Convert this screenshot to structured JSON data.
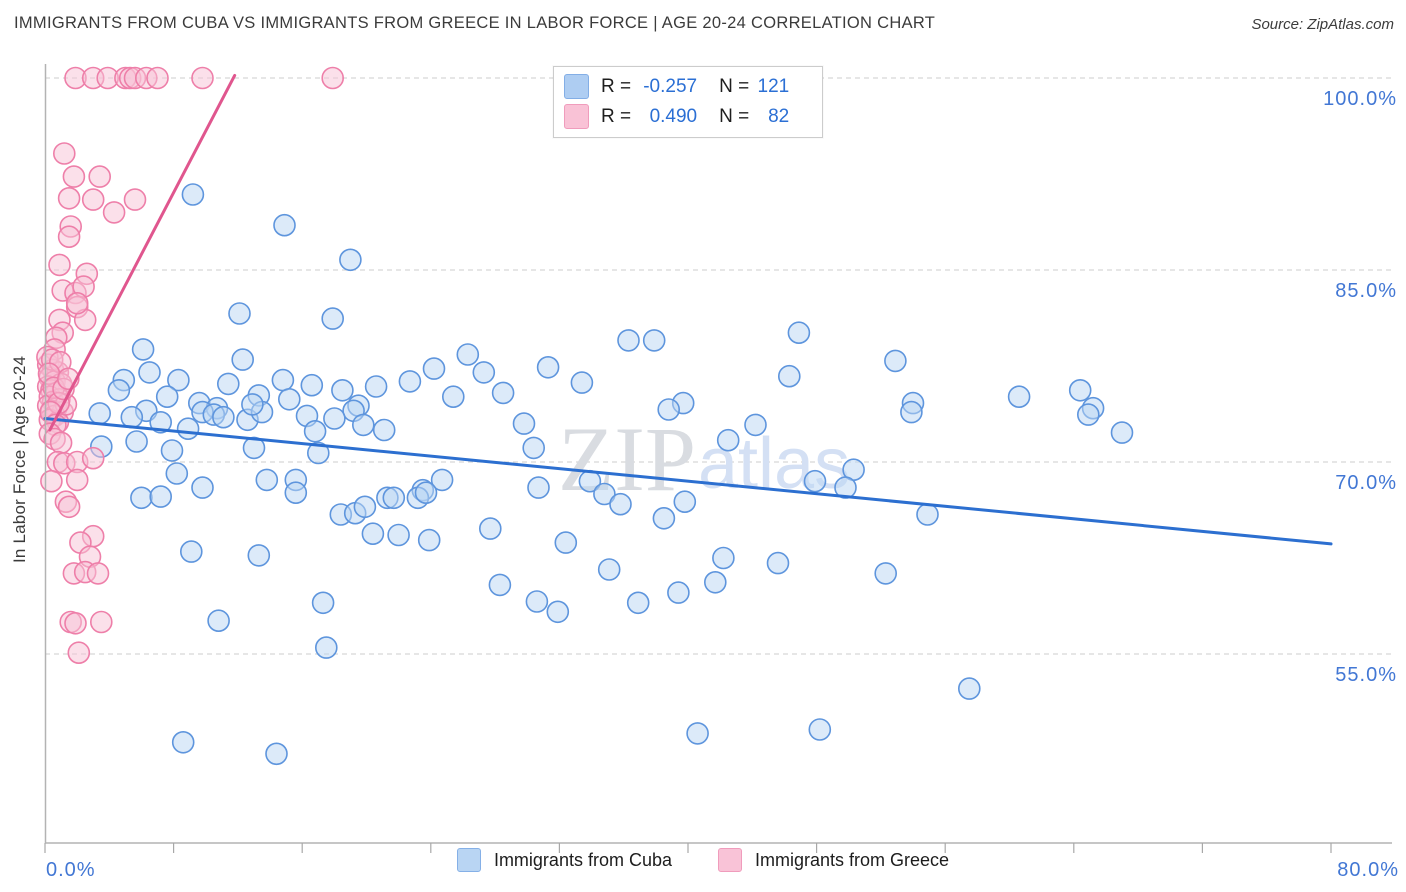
{
  "header": {
    "title": "IMMIGRANTS FROM CUBA VS IMMIGRANTS FROM GREECE IN LABOR FORCE | AGE 20-24 CORRELATION CHART",
    "source": "Source: ZipAtlas.com"
  },
  "legend_box": {
    "rows": [
      {
        "series": "cuba",
        "r_label": "R =",
        "r_value": "-0.257",
        "n_label": "N =",
        "n_value": "121"
      },
      {
        "series": "greece",
        "r_label": "R =",
        "r_value": "0.490",
        "n_label": "N =",
        "n_value": "82"
      }
    ]
  },
  "bottom_legend": [
    {
      "label": "Immigrants from Cuba"
    },
    {
      "label": "Immigrants from Greece"
    }
  ],
  "watermark": {
    "zip": "ZIP",
    "atlas": "atlas"
  },
  "colors": {
    "cuba_fill": "#b9d5f3",
    "cuba_stroke": "#5e95dd",
    "cuba_trend": "#2c6fd0",
    "greece_fill": "#f8c2d6",
    "greece_stroke": "#ee7fa9",
    "greece_trend": "#e0568e",
    "axis_label": "#4277d4",
    "grid": "#d6d6d6",
    "spine": "#b3b3b3",
    "tick": "#a8a8a8",
    "watermark_zip": "#d9dce1",
    "watermark_atlas": "#d4e0f4"
  },
  "chart_data": {
    "type": "scatter",
    "title": "IMMIGRANTS FROM CUBA VS IMMIGRANTS FROM GREECE IN LABOR FORCE | AGE 20-24 CORRELATION CHART",
    "xlabel": "",
    "ylabel": "In Labor Force | Age 20-24",
    "xlim": [
      0,
      80
    ],
    "ylim": [
      40,
      102
    ],
    "x_tick_labels": [
      "0.0%",
      "80.0%"
    ],
    "x_tick_count": 11,
    "y_gridlines": [
      100,
      85,
      70,
      55
    ],
    "y_tick_labels": [
      "100.0%",
      "85.0%",
      "70.0%",
      "55.0%"
    ],
    "grid": "dashed-horizontal",
    "legend_position": "top-center-box and bottom-center",
    "series": [
      {
        "name": "Immigrants from Cuba",
        "R": -0.257,
        "N": 121,
        "trend": {
          "x1": 0,
          "y1": 73.4,
          "x2": 80,
          "y2": 63.6
        },
        "points": [
          [
            9.2,
            90.9
          ],
          [
            14.9,
            88.5
          ],
          [
            19.0,
            85.8
          ],
          [
            12.1,
            81.6
          ],
          [
            17.9,
            81.2
          ],
          [
            6.1,
            78.8
          ],
          [
            4.9,
            76.4
          ],
          [
            6.5,
            77.0
          ],
          [
            8.3,
            76.4
          ],
          [
            12.3,
            78.0
          ],
          [
            14.8,
            76.4
          ],
          [
            18.5,
            75.6
          ],
          [
            19.5,
            74.4
          ],
          [
            13.3,
            75.2
          ],
          [
            9.6,
            74.6
          ],
          [
            10.7,
            74.2
          ],
          [
            3.4,
            73.8
          ],
          [
            6.3,
            74.0
          ],
          [
            7.2,
            73.1
          ],
          [
            9.8,
            73.9
          ],
          [
            10.5,
            73.7
          ],
          [
            11.1,
            73.5
          ],
          [
            12.6,
            73.3
          ],
          [
            13.5,
            73.9
          ],
          [
            19.2,
            74.0
          ],
          [
            16.3,
            73.6
          ],
          [
            16.8,
            72.4
          ],
          [
            21.1,
            72.5
          ],
          [
            4.6,
            75.6
          ],
          [
            7.6,
            75.1
          ],
          [
            11.4,
            76.1
          ],
          [
            15.2,
            74.9
          ],
          [
            18.0,
            73.4
          ],
          [
            20.6,
            75.9
          ],
          [
            5.4,
            73.5
          ],
          [
            8.9,
            72.6
          ],
          [
            12.9,
            74.5
          ],
          [
            16.6,
            76.0
          ],
          [
            19.8,
            72.9
          ],
          [
            3.5,
            71.2
          ],
          [
            5.7,
            71.6
          ],
          [
            7.9,
            70.9
          ],
          [
            8.2,
            69.1
          ],
          [
            6.0,
            67.2
          ],
          [
            7.2,
            67.3
          ],
          [
            9.8,
            68.0
          ],
          [
            13.8,
            68.6
          ],
          [
            15.6,
            68.6
          ],
          [
            15.6,
            67.6
          ],
          [
            13.0,
            71.1
          ],
          [
            17.0,
            70.7
          ],
          [
            18.4,
            65.9
          ],
          [
            19.3,
            66.0
          ],
          [
            19.9,
            66.5
          ],
          [
            20.4,
            64.4
          ],
          [
            21.3,
            67.2
          ],
          [
            9.1,
            63.0
          ],
          [
            13.3,
            62.7
          ],
          [
            10.8,
            57.6
          ],
          [
            17.3,
            59.0
          ],
          [
            17.5,
            55.5
          ],
          [
            8.6,
            48.1
          ],
          [
            14.4,
            47.2
          ],
          [
            22.7,
            76.3
          ],
          [
            24.2,
            77.3
          ],
          [
            26.3,
            78.4
          ],
          [
            27.3,
            77.0
          ],
          [
            28.5,
            75.4
          ],
          [
            25.4,
            75.1
          ],
          [
            31.3,
            77.4
          ],
          [
            33.4,
            76.2
          ],
          [
            36.3,
            79.5
          ],
          [
            37.9,
            79.5
          ],
          [
            39.7,
            74.6
          ],
          [
            29.8,
            73.0
          ],
          [
            30.4,
            71.1
          ],
          [
            24.7,
            68.6
          ],
          [
            23.5,
            67.8
          ],
          [
            23.2,
            67.2
          ],
          [
            21.7,
            67.2
          ],
          [
            23.7,
            67.6
          ],
          [
            30.7,
            68.0
          ],
          [
            33.9,
            68.5
          ],
          [
            34.8,
            67.5
          ],
          [
            35.8,
            66.7
          ],
          [
            38.5,
            65.6
          ],
          [
            39.8,
            66.9
          ],
          [
            22.0,
            64.3
          ],
          [
            23.9,
            63.9
          ],
          [
            27.7,
            64.8
          ],
          [
            32.4,
            63.7
          ],
          [
            35.1,
            61.6
          ],
          [
            28.3,
            60.4
          ],
          [
            30.6,
            59.1
          ],
          [
            31.9,
            58.3
          ],
          [
            36.9,
            59.0
          ],
          [
            39.4,
            59.8
          ],
          [
            41.7,
            60.6
          ],
          [
            42.2,
            62.5
          ],
          [
            40.6,
            48.8
          ],
          [
            42.5,
            71.7
          ],
          [
            38.8,
            74.1
          ],
          [
            46.9,
            80.1
          ],
          [
            46.3,
            76.7
          ],
          [
            52.9,
            77.9
          ],
          [
            54.0,
            74.6
          ],
          [
            60.6,
            75.1
          ],
          [
            64.4,
            75.6
          ],
          [
            65.2,
            74.2
          ],
          [
            44.2,
            72.9
          ],
          [
            53.9,
            73.9
          ],
          [
            64.9,
            73.7
          ],
          [
            50.3,
            69.4
          ],
          [
            47.9,
            68.5
          ],
          [
            49.8,
            68.0
          ],
          [
            54.9,
            65.9
          ],
          [
            45.6,
            62.1
          ],
          [
            52.3,
            61.3
          ],
          [
            57.5,
            52.3
          ],
          [
            48.2,
            49.1
          ],
          [
            67.0,
            72.3
          ]
        ]
      },
      {
        "name": "Immigrants from Greece",
        "R": 0.49,
        "N": 82,
        "trend": {
          "x1": 0.3,
          "y1": 72.5,
          "x2": 11.8,
          "y2": 100.2
        },
        "points": [
          [
            1.9,
            100
          ],
          [
            3.0,
            100
          ],
          [
            3.9,
            100
          ],
          [
            5.0,
            100
          ],
          [
            5.3,
            100
          ],
          [
            5.6,
            100
          ],
          [
            6.3,
            100
          ],
          [
            7.0,
            100
          ],
          [
            9.8,
            100
          ],
          [
            17.9,
            100
          ],
          [
            1.2,
            94.1
          ],
          [
            1.8,
            92.3
          ],
          [
            3.4,
            92.3
          ],
          [
            1.5,
            90.6
          ],
          [
            3.0,
            90.5
          ],
          [
            4.3,
            89.5
          ],
          [
            5.6,
            90.5
          ],
          [
            1.6,
            88.4
          ],
          [
            1.5,
            87.6
          ],
          [
            2.6,
            84.7
          ],
          [
            1.1,
            83.4
          ],
          [
            1.9,
            83.2
          ],
          [
            2.4,
            83.7
          ],
          [
            2.0,
            82.1
          ],
          [
            0.9,
            81.1
          ],
          [
            1.1,
            80.1
          ],
          [
            0.7,
            79.7
          ],
          [
            0.6,
            78.8
          ],
          [
            2.5,
            81.1
          ],
          [
            2.0,
            82.4
          ],
          [
            0.9,
            85.4
          ],
          [
            0.2,
            77.6
          ],
          [
            0.5,
            77.2
          ],
          [
            0.8,
            77.0
          ],
          [
            0.3,
            76.6
          ],
          [
            0.6,
            76.3
          ],
          [
            1.0,
            76.1
          ],
          [
            0.2,
            75.9
          ],
          [
            0.4,
            75.6
          ],
          [
            0.7,
            75.4
          ],
          [
            0.3,
            75.1
          ],
          [
            0.9,
            74.9
          ],
          [
            0.5,
            74.7
          ],
          [
            0.2,
            74.4
          ],
          [
            0.7,
            74.2
          ],
          [
            0.4,
            74.0
          ],
          [
            1.1,
            73.9
          ],
          [
            0.6,
            73.6
          ],
          [
            0.3,
            73.3
          ],
          [
            0.8,
            73.1
          ],
          [
            1.3,
            74.5
          ],
          [
            0.15,
            78.2
          ],
          [
            0.45,
            78.0
          ],
          [
            0.95,
            77.8
          ],
          [
            0.25,
            76.9
          ],
          [
            0.55,
            75.8
          ],
          [
            0.85,
            74.6
          ],
          [
            1.15,
            75.7
          ],
          [
            0.35,
            73.9
          ],
          [
            0.65,
            72.9
          ],
          [
            1.45,
            76.5
          ],
          [
            0.3,
            72.2
          ],
          [
            0.6,
            71.8
          ],
          [
            1.0,
            71.5
          ],
          [
            0.8,
            70.0
          ],
          [
            1.2,
            69.9
          ],
          [
            2.0,
            70.0
          ],
          [
            3.0,
            70.3
          ],
          [
            0.4,
            68.5
          ],
          [
            2.0,
            68.6
          ],
          [
            1.3,
            66.9
          ],
          [
            1.5,
            66.5
          ],
          [
            3.0,
            64.2
          ],
          [
            2.2,
            63.7
          ],
          [
            2.8,
            62.6
          ],
          [
            1.8,
            61.3
          ],
          [
            2.5,
            61.4
          ],
          [
            3.3,
            61.3
          ],
          [
            1.6,
            57.5
          ],
          [
            1.9,
            57.4
          ],
          [
            3.5,
            57.5
          ],
          [
            2.1,
            55.1
          ]
        ]
      }
    ]
  }
}
